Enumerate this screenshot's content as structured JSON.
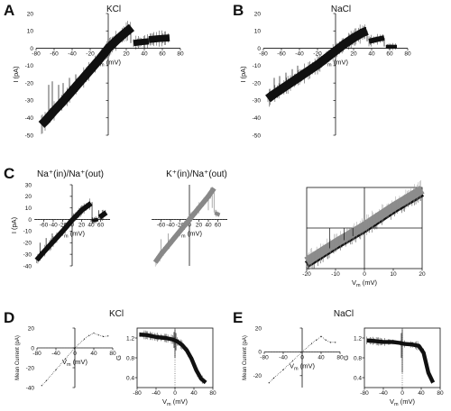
{
  "figure": {
    "panel_labels": [
      "A",
      "B",
      "C",
      "D",
      "E"
    ]
  },
  "chart_data": [
    {
      "id": "A",
      "type": "line",
      "title": "KCl",
      "xlabel": "V",
      "xlabel_sub": "m",
      "xlabel_unit": "(mV)",
      "ylabel": "I (pA)",
      "xlim": [
        -80,
        80
      ],
      "ylim": [
        -50,
        20
      ],
      "xticks": [
        -80,
        -60,
        -40,
        -20,
        0,
        20,
        40,
        60,
        80
      ],
      "yticks": [
        -50,
        -40,
        -30,
        -20,
        -10,
        0,
        10,
        20
      ],
      "color": "#111111",
      "series": [
        {
          "x": [
            -74,
            -70,
            -60,
            -50,
            -40,
            -30,
            -20,
            -10,
            0,
            10,
            20,
            26
          ],
          "y": [
            -44,
            -42,
            -36,
            -30.5,
            -24.5,
            -18.5,
            -12.5,
            -6.5,
            0,
            5,
            9.5,
            12
          ],
          "fill": 2.5
        },
        {
          "x": [
            28,
            35,
            45
          ],
          "y": [
            3,
            3.5,
            4
          ],
          "fill": 1.8
        },
        {
          "x": [
            45,
            55,
            68
          ],
          "y": [
            5,
            5.5,
            6
          ],
          "fill": 2
        }
      ],
      "spikes": [
        {
          "x": -66,
          "y1": -41,
          "y2": -21
        },
        {
          "x": -62,
          "y1": -38,
          "y2": -19
        },
        {
          "x": -55,
          "y1": -34,
          "y2": -21
        },
        {
          "x": -50,
          "y1": -31,
          "y2": -20
        },
        {
          "x": -43,
          "y1": -27,
          "y2": -17
        },
        {
          "x": -36,
          "y1": -22,
          "y2": -15
        },
        {
          "x": 25,
          "y1": 12,
          "y2": 3
        }
      ]
    },
    {
      "id": "B",
      "type": "line",
      "title": "NaCl",
      "xlabel": "V",
      "xlabel_sub": "m",
      "xlabel_unit": "(mV)",
      "ylabel": "I (pA)",
      "xlim": [
        -80,
        80
      ],
      "ylim": [
        -50,
        20
      ],
      "xticks": [
        -80,
        -60,
        -40,
        -20,
        0,
        20,
        40,
        60,
        80
      ],
      "yticks": [
        -50,
        -40,
        -30,
        -20,
        -10,
        0,
        10,
        20
      ],
      "color": "#111111",
      "series": [
        {
          "x": [
            -75,
            -70,
            -60,
            -50,
            -40,
            -30,
            -20,
            -10,
            0,
            10,
            20,
            30,
            35
          ],
          "y": [
            -29,
            -27,
            -23.5,
            -20,
            -16.5,
            -13,
            -9.5,
            -5.5,
            -1.5,
            2.5,
            6,
            9,
            10
          ],
          "fill": 2.5
        },
        {
          "x": [
            37,
            45,
            54
          ],
          "y": [
            4,
            5,
            6
          ],
          "fill": 1.5
        },
        {
          "x": [
            56,
            62,
            68
          ],
          "y": [
            1,
            1,
            1
          ],
          "fill": 1
        }
      ],
      "spikes": [
        {
          "x": -68,
          "y1": -26,
          "y2": -17
        },
        {
          "x": -62,
          "y1": -24,
          "y2": -16
        },
        {
          "x": -55,
          "y1": -22,
          "y2": -14
        },
        {
          "x": -48,
          "y1": -19,
          "y2": -12
        },
        {
          "x": -42,
          "y1": -17,
          "y2": -10
        },
        {
          "x": 35,
          "y1": 10,
          "y2": 4
        },
        {
          "x": 54,
          "y1": 6,
          "y2": 1
        }
      ]
    },
    {
      "id": "C1",
      "type": "line",
      "title": "Na⁺(in)/Na⁺(out)",
      "xlabel": "V",
      "xlabel_sub": "m",
      "xlabel_unit": "(mV)",
      "ylabel": "I (pA)",
      "xlim": [
        -80,
        80
      ],
      "ylim": [
        -40,
        30
      ],
      "xticks": [
        -60,
        -40,
        -20,
        0,
        20,
        40,
        60
      ],
      "yticks": [
        -40,
        -30,
        -20,
        -10,
        0,
        10,
        20,
        30
      ],
      "color": "#111111",
      "series": [
        {
          "x": [
            -75,
            -60,
            -40,
            -20,
            0,
            20,
            40
          ],
          "y": [
            -35,
            -28,
            -19,
            -10,
            -0.5,
            8,
            14
          ],
          "fill": 2.2
        },
        {
          "x": [
            42,
            48,
            55
          ],
          "y": [
            -1,
            -0.5,
            0
          ],
          "fill": 1.5
        },
        {
          "x": [
            58,
            65,
            72
          ],
          "y": [
            2,
            4,
            6
          ],
          "fill": 2.2
        }
      ],
      "spikes": [
        {
          "x": -68,
          "y1": -32,
          "y2": -20
        },
        {
          "x": -55,
          "y1": -26,
          "y2": -16
        },
        {
          "x": -42,
          "y1": -20,
          "y2": -12
        },
        {
          "x": 42,
          "y1": 15,
          "y2": -1
        },
        {
          "x": 56,
          "y1": 8,
          "y2": 1
        }
      ]
    },
    {
      "id": "C2",
      "type": "line",
      "title": "K⁺(in)/Na⁺(out)",
      "xlabel": "V",
      "xlabel_sub": "m",
      "xlabel_unit": "(mV)",
      "ylabel": "",
      "xlim": [
        -80,
        80
      ],
      "ylim": [
        -40,
        30
      ],
      "xticks": [
        -60,
        -40,
        -20,
        0,
        20,
        40,
        60
      ],
      "yticks": [],
      "color": "#888888",
      "series": [
        {
          "x": [
            -72,
            -60,
            -40,
            -20,
            0,
            20,
            40,
            52
          ],
          "y": [
            -37,
            -30,
            -20,
            -10,
            0,
            10,
            20,
            27
          ],
          "fill": 2.2
        },
        {
          "x": [
            54,
            58,
            64
          ],
          "y": [
            6,
            5,
            4
          ],
          "fill": 1.5
        }
      ],
      "spikes": [
        {
          "x": -60,
          "y1": -30,
          "y2": -17
        },
        {
          "x": -45,
          "y1": -22,
          "y2": -12
        },
        {
          "x": 40,
          "y1": 20,
          "y2": 8
        },
        {
          "x": 48,
          "y1": 24,
          "y2": 10
        },
        {
          "x": 52,
          "y1": 27,
          "y2": 6
        }
      ]
    },
    {
      "id": "C3",
      "type": "line",
      "title": "",
      "xlabel": "V",
      "xlabel_sub": "m",
      "xlabel_unit": "(mV)",
      "ylabel": "",
      "xlim": [
        -20,
        20
      ],
      "ylim": [
        -10,
        10
      ],
      "xticks": [
        -20,
        -10,
        0,
        10,
        20
      ],
      "yticks": [],
      "color": "#111111",
      "series": [
        {
          "x": [
            -20,
            -10,
            0,
            10,
            20
          ],
          "y": [
            -9,
            -4.5,
            -0.3,
            4.4,
            8.6
          ],
          "fill": 0.9,
          "color": "#111111"
        },
        {
          "x": [
            -20,
            -10,
            0,
            10,
            20
          ],
          "y": [
            -8.2,
            -3.7,
            0.5,
            5.2,
            9.5
          ],
          "fill": 1.1,
          "color": "#8c8c8c"
        }
      ],
      "spikes": [
        {
          "x": -12,
          "y1": -5,
          "y2": 0
        },
        {
          "x": -7,
          "y1": -3,
          "y2": 0
        },
        {
          "x": -4,
          "y1": -2,
          "y2": 0
        }
      ]
    },
    {
      "id": "D1",
      "type": "line",
      "title": "KCl",
      "xlabel": "V",
      "xlabel_sub": "m",
      "xlabel_unit": "(mV)",
      "ylabel": "Mean Current (pA)",
      "xlim": [
        -80,
        80
      ],
      "ylim": [
        -40,
        20
      ],
      "xticks": [
        -80,
        -40,
        0,
        40,
        80
      ],
      "yticks": [
        -40,
        -20,
        0,
        20
      ],
      "color": "#111111",
      "series": [
        {
          "x": [
            -70,
            -60,
            -40,
            -20,
            0,
            20,
            30,
            40,
            50,
            60,
            70
          ],
          "y": [
            -38,
            -33,
            -22,
            -11,
            0,
            9,
            12.5,
            15,
            13,
            11.5,
            12
          ],
          "fill": 0,
          "dotted": true
        }
      ],
      "spikes": []
    },
    {
      "id": "D2",
      "type": "line",
      "title": "",
      "xlabel": "V",
      "xlabel_sub": "m",
      "xlabel_unit": "(mV)",
      "ylabel": "G",
      "xlim": [
        -80,
        80
      ],
      "ylim": [
        0.2,
        1.4
      ],
      "xticks": [
        -80,
        -40,
        0,
        40,
        80
      ],
      "yticks": [
        0.4,
        0.8,
        1.2
      ],
      "color": "#111111",
      "series": [
        {
          "x": [
            -75,
            -60,
            -40,
            -20,
            -5,
            5,
            15,
            25,
            35,
            45,
            55,
            65
          ],
          "y": [
            1.27,
            1.26,
            1.22,
            1.2,
            1.17,
            1.13,
            1.06,
            0.95,
            0.78,
            0.55,
            0.38,
            0.3
          ],
          "fill": 0.04
        }
      ],
      "spikes": [
        {
          "x": 0,
          "y1": 0.8,
          "y2": 1.38
        },
        {
          "x": -2,
          "y1": 1.0,
          "y2": 1.32
        },
        {
          "x": 2,
          "y1": 0.95,
          "y2": 1.3
        }
      ]
    },
    {
      "id": "E1",
      "type": "line",
      "title": "NaCl",
      "xlabel": "V",
      "xlabel_sub": "m",
      "xlabel_unit": "(mV)",
      "ylabel": "Mean Current (pA)",
      "xlim": [
        -80,
        80
      ],
      "ylim": [
        -30,
        20
      ],
      "xticks": [
        -80,
        -40,
        0,
        40,
        80
      ],
      "yticks": [
        -20,
        0,
        20
      ],
      "color": "#111111",
      "series": [
        {
          "x": [
            -70,
            -60,
            -40,
            -20,
            0,
            20,
            30,
            40,
            50,
            60,
            70
          ],
          "y": [
            -26,
            -22,
            -15,
            -7.5,
            0,
            7,
            10,
            13,
            10,
            8,
            8
          ],
          "fill": 0,
          "dotted": true
        }
      ],
      "spikes": []
    },
    {
      "id": "E2",
      "type": "line",
      "title": "",
      "xlabel": "V",
      "xlabel_sub": "m",
      "xlabel_unit": "(mV)",
      "ylabel": "G",
      "xlim": [
        -80,
        80
      ],
      "ylim": [
        0.2,
        1.4
      ],
      "xticks": [
        -80,
        -40,
        0,
        40,
        80
      ],
      "yticks": [
        0.4,
        0.8,
        1.2
      ],
      "color": "#111111",
      "series": [
        {
          "x": [
            -75,
            -60,
            -40,
            -20,
            -5,
            5,
            20,
            35,
            45,
            55,
            65
          ],
          "y": [
            1.15,
            1.14,
            1.12,
            1.12,
            1.1,
            1.08,
            1.07,
            1.04,
            0.9,
            0.5,
            0.3
          ],
          "fill": 0.04
        }
      ],
      "spikes": [
        {
          "x": 0,
          "y1": 0.5,
          "y2": 1.38
        },
        {
          "x": -2,
          "y1": 0.8,
          "y2": 1.3
        }
      ]
    }
  ]
}
